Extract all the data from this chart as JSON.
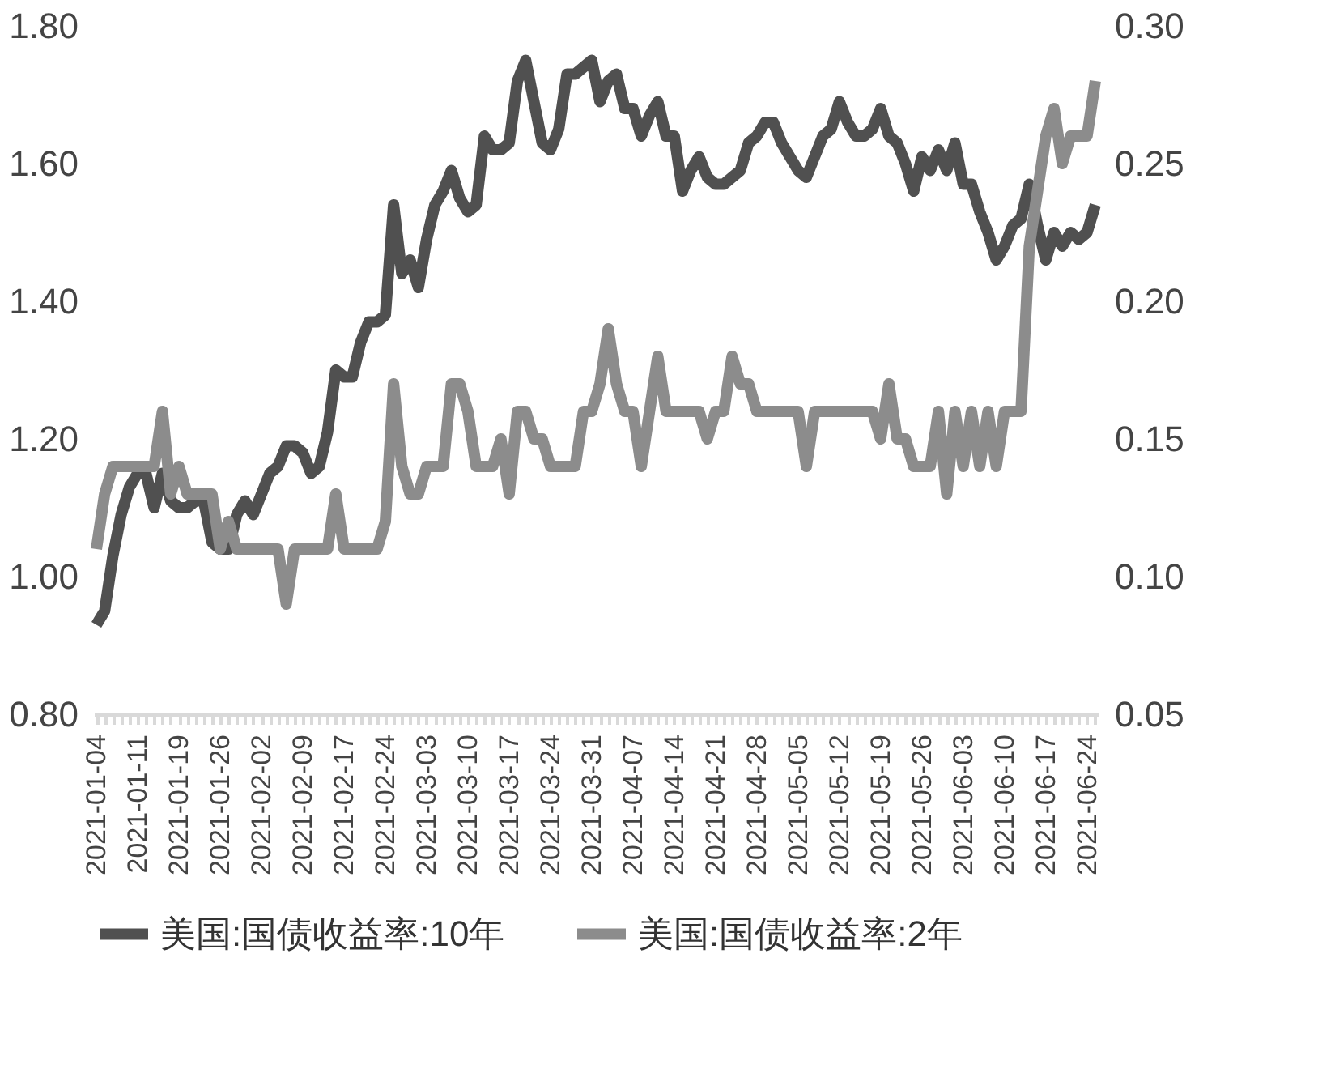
{
  "chart_data": {
    "type": "line",
    "categories": [
      "2021-01-04",
      null,
      null,
      null,
      null,
      "2021-01-11",
      null,
      null,
      null,
      null,
      "2021-01-19",
      null,
      null,
      null,
      null,
      "2021-01-26",
      null,
      null,
      null,
      null,
      "2021-02-02",
      null,
      null,
      null,
      null,
      "2021-02-09",
      null,
      null,
      null,
      null,
      "2021-02-17",
      null,
      null,
      null,
      null,
      "2021-02-24",
      null,
      null,
      null,
      null,
      "2021-03-03",
      null,
      null,
      null,
      null,
      "2021-03-10",
      null,
      null,
      null,
      null,
      "2021-03-17",
      null,
      null,
      null,
      null,
      "2021-03-24",
      null,
      null,
      null,
      null,
      "2021-03-31",
      null,
      null,
      null,
      null,
      "2021-04-07",
      null,
      null,
      null,
      null,
      "2021-04-14",
      null,
      null,
      null,
      null,
      "2021-04-21",
      null,
      null,
      null,
      null,
      "2021-04-28",
      null,
      null,
      null,
      null,
      "2021-05-05",
      null,
      null,
      null,
      null,
      "2021-05-12",
      null,
      null,
      null,
      null,
      "2021-05-19",
      null,
      null,
      null,
      null,
      "2021-05-26",
      null,
      null,
      null,
      null,
      "2021-06-03",
      null,
      null,
      null,
      null,
      "2021-06-10",
      null,
      null,
      null,
      null,
      "2021-06-17",
      null,
      null,
      null,
      null,
      "2021-06-24",
      null
    ],
    "series": [
      {
        "name": "美国:国债收益率:10年",
        "color": "#505050",
        "values": [
          0.93,
          0.95,
          1.03,
          1.09,
          1.13,
          1.15,
          1.15,
          1.1,
          1.15,
          1.11,
          1.1,
          1.1,
          1.11,
          1.11,
          1.05,
          1.04,
          1.04,
          1.09,
          1.11,
          1.09,
          1.12,
          1.15,
          1.16,
          1.19,
          1.19,
          1.18,
          1.15,
          1.16,
          1.21,
          1.3,
          1.29,
          1.29,
          1.34,
          1.37,
          1.37,
          1.38,
          1.54,
          1.44,
          1.46,
          1.42,
          1.49,
          1.54,
          1.56,
          1.59,
          1.55,
          1.53,
          1.54,
          1.64,
          1.62,
          1.62,
          1.63,
          1.72,
          1.75,
          1.69,
          1.63,
          1.62,
          1.65,
          1.73,
          1.73,
          1.74,
          1.75,
          1.69,
          1.72,
          1.73,
          1.68,
          1.68,
          1.64,
          1.67,
          1.69,
          1.64,
          1.64,
          1.56,
          1.59,
          1.61,
          1.58,
          1.57,
          1.57,
          1.58,
          1.59,
          1.63,
          1.64,
          1.66,
          1.66,
          1.63,
          1.61,
          1.59,
          1.58,
          1.61,
          1.64,
          1.65,
          1.69,
          1.66,
          1.64,
          1.64,
          1.65,
          1.68,
          1.64,
          1.63,
          1.6,
          1.56,
          1.61,
          1.59,
          1.62,
          1.59,
          1.63,
          1.57,
          1.57,
          1.53,
          1.5,
          1.46,
          1.48,
          1.51,
          1.52,
          1.57,
          1.51,
          1.46,
          1.5,
          1.48,
          1.5,
          1.49,
          1.5,
          1.54
        ]
      },
      {
        "name": "美国:国债收益率:2年",
        "color": "#8c8c8c",
        "axis": "y2",
        "values": [
          0.11,
          0.13,
          0.14,
          0.14,
          0.14,
          0.14,
          0.14,
          0.14,
          0.16,
          0.13,
          0.14,
          0.13,
          0.13,
          0.13,
          0.13,
          0.11,
          0.12,
          0.11,
          0.11,
          0.11,
          0.11,
          0.11,
          0.11,
          0.09,
          0.11,
          0.11,
          0.11,
          0.11,
          0.11,
          0.13,
          0.11,
          0.11,
          0.11,
          0.11,
          0.11,
          0.12,
          0.17,
          0.14,
          0.13,
          0.13,
          0.14,
          0.14,
          0.14,
          0.17,
          0.17,
          0.16,
          0.14,
          0.14,
          0.14,
          0.15,
          0.13,
          0.16,
          0.16,
          0.15,
          0.15,
          0.14,
          0.14,
          0.14,
          0.14,
          0.16,
          0.16,
          0.17,
          0.19,
          0.17,
          0.16,
          0.16,
          0.14,
          0.16,
          0.18,
          0.16,
          0.16,
          0.16,
          0.16,
          0.16,
          0.15,
          0.16,
          0.16,
          0.18,
          0.17,
          0.17,
          0.16,
          0.16,
          0.16,
          0.16,
          0.16,
          0.16,
          0.14,
          0.16,
          0.16,
          0.16,
          0.16,
          0.16,
          0.16,
          0.16,
          0.16,
          0.15,
          0.17,
          0.15,
          0.15,
          0.14,
          0.14,
          0.14,
          0.16,
          0.13,
          0.16,
          0.14,
          0.16,
          0.14,
          0.16,
          0.14,
          0.16,
          0.16,
          0.16,
          0.22,
          0.24,
          0.26,
          0.27,
          0.25,
          0.26,
          0.26,
          0.26,
          0.28
        ]
      }
    ],
    "ylim": [
      0.8,
      1.8
    ],
    "yticks": [
      {
        "value": 0.8,
        "label": "0.80"
      },
      {
        "value": 1.0,
        "label": "1.00"
      },
      {
        "value": 1.2,
        "label": "1.20"
      },
      {
        "value": 1.4,
        "label": "1.40"
      },
      {
        "value": 1.6,
        "label": "1.60"
      },
      {
        "value": 1.8,
        "label": "1.80"
      }
    ],
    "y2lim": [
      0.05,
      0.3
    ],
    "y2ticks": [
      {
        "value": 0.05,
        "label": "0.05"
      },
      {
        "value": 0.1,
        "label": "0.10"
      },
      {
        "value": 0.15,
        "label": "0.15"
      },
      {
        "value": 0.2,
        "label": "0.20"
      },
      {
        "value": 0.25,
        "label": "0.25"
      },
      {
        "value": 0.3,
        "label": "0.30"
      }
    ],
    "grid": false,
    "legend": "bottom",
    "marker": "none",
    "line_style": "solid"
  }
}
